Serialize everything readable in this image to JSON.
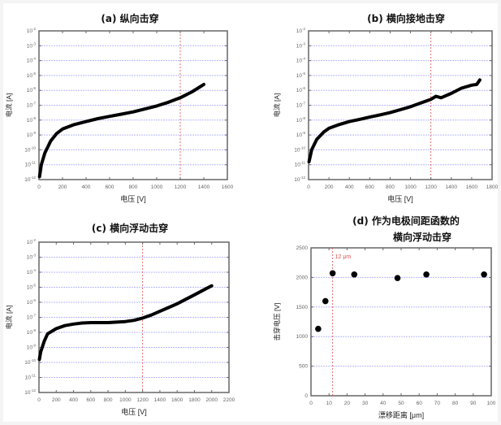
{
  "panels": [
    {
      "id": "a",
      "title": "(a)  纵向击穿",
      "xlabel": "电压 [V]",
      "ylabel": "电流 [A]"
    },
    {
      "id": "b",
      "title": "(b)  横向接地击穿",
      "xlabel": "电压 [V]",
      "ylabel": "电流 [A]"
    },
    {
      "id": "c",
      "title": "(c)  横向浮动击穿",
      "xlabel": "电压 [V]",
      "ylabel": "电流 [A]"
    },
    {
      "id": "d",
      "title_line1": "(d)  作为电极间距函数的",
      "title_line2": "横向浮动击穿",
      "xlabel": "漂移距离 [μm]",
      "ylabel": "击穿电压 [V]",
      "annotation": "12 μm"
    }
  ],
  "colors": {
    "curve": "#000000",
    "grid": "#b8b8ff",
    "ref_line": "#e05050",
    "axis": "#666666"
  },
  "chart_data": [
    {
      "type": "scatter",
      "title": "(a) 纵向击穿",
      "xlabel": "电压 [V]",
      "ylabel": "电流 [A]",
      "yscale": "log",
      "xlim": [
        0,
        1600
      ],
      "ylim_exp": [
        -12,
        -2
      ],
      "xticks": [
        0,
        200,
        400,
        600,
        800,
        1000,
        1200,
        1400,
        1600
      ],
      "yticks": [
        "10^-2",
        "10^-3",
        "10^-4",
        "10^-5",
        "10^-6",
        "10^-7",
        "10^-8",
        "10^-9",
        "10^-10",
        "10^-11",
        "10^-12"
      ],
      "vline": 1200,
      "x": [
        5,
        20,
        50,
        100,
        150,
        200,
        300,
        400,
        500,
        600,
        700,
        800,
        900,
        1000,
        1100,
        1200,
        1300,
        1400
      ],
      "y_exp": [
        -11.8,
        -11.0,
        -10.2,
        -9.4,
        -8.9,
        -8.6,
        -8.3,
        -8.1,
        -7.9,
        -7.75,
        -7.6,
        -7.45,
        -7.25,
        -7.05,
        -6.8,
        -6.5,
        -6.1,
        -5.6
      ]
    },
    {
      "type": "scatter",
      "title": "(b) 横向接地击穿",
      "xlabel": "电压 [V]",
      "ylabel": "电流 [A]",
      "yscale": "log",
      "xlim": [
        0,
        1800
      ],
      "ylim_exp": [
        -12,
        -2
      ],
      "xticks": [
        0,
        200,
        400,
        600,
        800,
        1000,
        1200,
        1400,
        1600,
        1800
      ],
      "yticks": [
        "10^-2",
        "10^-3",
        "10^-4",
        "10^-5",
        "10^-6",
        "10^-7",
        "10^-8",
        "10^-9",
        "10^-10",
        "10^-11",
        "10^-12"
      ],
      "vline": 1200,
      "x": [
        5,
        30,
        80,
        150,
        200,
        300,
        400,
        500,
        600,
        700,
        800,
        900,
        1000,
        1100,
        1200,
        1250,
        1300,
        1400,
        1500,
        1600,
        1650,
        1680
      ],
      "y_exp": [
        -10.8,
        -10.0,
        -9.3,
        -8.8,
        -8.55,
        -8.3,
        -8.1,
        -7.95,
        -7.8,
        -7.65,
        -7.5,
        -7.3,
        -7.1,
        -6.85,
        -6.6,
        -6.4,
        -6.5,
        -6.2,
        -5.85,
        -5.65,
        -5.6,
        -5.3
      ]
    },
    {
      "type": "scatter",
      "title": "(c) 横向浮动击穿",
      "xlabel": "电压 [V]",
      "ylabel": "电流 [A]",
      "yscale": "log",
      "xlim": [
        0,
        2200
      ],
      "ylim_exp": [
        -12,
        -2
      ],
      "xticks": [
        0,
        200,
        400,
        600,
        800,
        1000,
        1200,
        1400,
        1600,
        1800,
        2000,
        2200
      ],
      "yticks": [
        "10^-2",
        "10^-3",
        "10^-4",
        "10^-5",
        "10^-6",
        "10^-7",
        "10^-8",
        "10^-9",
        "10^-10",
        "10^-11",
        "10^-12"
      ],
      "vline": 1200,
      "x": [
        5,
        20,
        60,
        100,
        200,
        300,
        400,
        500,
        600,
        700,
        800,
        900,
        1000,
        1100,
        1200,
        1300,
        1400,
        1500,
        1600,
        1700,
        1800,
        1900,
        2000
      ],
      "y_exp": [
        -9.8,
        -9.3,
        -8.6,
        -8.1,
        -7.75,
        -7.55,
        -7.45,
        -7.38,
        -7.35,
        -7.35,
        -7.35,
        -7.32,
        -7.28,
        -7.2,
        -7.05,
        -6.85,
        -6.6,
        -6.35,
        -6.1,
        -5.8,
        -5.5,
        -5.2,
        -4.9
      ]
    },
    {
      "type": "scatter",
      "title": "(d) 作为电极间距函数的横向浮动击穿",
      "xlabel": "漂移距离 [μm]",
      "ylabel": "击穿电压 [V]",
      "xlim": [
        0,
        100
      ],
      "ylim": [
        0,
        2500
      ],
      "xticks": [
        0,
        10,
        20,
        30,
        40,
        50,
        60,
        70,
        80,
        90,
        100
      ],
      "yticks": [
        0,
        500,
        1000,
        1500,
        2000,
        2500
      ],
      "vline": 12,
      "annotation": "12 μm",
      "x": [
        4,
        8,
        12,
        24,
        48,
        64,
        96
      ],
      "y": [
        1130,
        1600,
        2070,
        2050,
        1990,
        2050,
        2050
      ]
    }
  ]
}
